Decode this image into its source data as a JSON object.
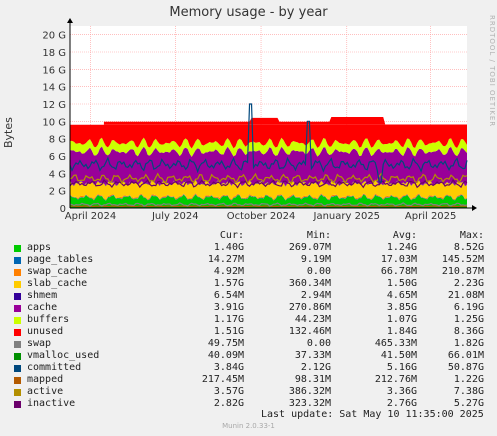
{
  "chart_data": {
    "type": "area",
    "title": "Memory usage - by year",
    "ylabel": "Bytes",
    "ylim": [
      0,
      21
    ],
    "y_ticks": [
      "0",
      "2 G",
      "4 G",
      "6 G",
      "8 G",
      "10 G",
      "12 G",
      "14 G",
      "16 G",
      "18 G",
      "20 G"
    ],
    "x_ticks": [
      {
        "label": "April 2024",
        "x": "2024-04-01"
      },
      {
        "label": "July 2024",
        "x": "2024-07-01"
      },
      {
        "label": "October 2024",
        "x": "2024-10-01"
      },
      {
        "label": "January 2025",
        "x": "2025-01-01"
      },
      {
        "label": "April 2025",
        "x": "2025-04-01"
      }
    ],
    "x_range": [
      "2024-03-10",
      "2025-05-10"
    ],
    "grid": true,
    "watermark": "RRDTOOL / TOBI OETIKER",
    "columns": [
      "Cur:",
      "Min:",
      "Avg:",
      "Max:"
    ],
    "series": [
      {
        "name": "apps",
        "color": "#00cc00",
        "cur": "1.40G",
        "min": "269.07M",
        "avg": "1.24G",
        "max": "8.52G"
      },
      {
        "name": "page_tables",
        "color": "#0066b3",
        "cur": "14.27M",
        "min": "9.19M",
        "avg": "17.03M",
        "max": "145.52M"
      },
      {
        "name": "swap_cache",
        "color": "#ff8000",
        "cur": "4.92M",
        "min": "0.00",
        "avg": "66.78M",
        "max": "210.87M"
      },
      {
        "name": "slab_cache",
        "color": "#ffcc00",
        "cur": "1.57G",
        "min": "360.34M",
        "avg": "1.50G",
        "max": "2.23G"
      },
      {
        "name": "shmem",
        "color": "#330099",
        "cur": "6.54M",
        "min": "2.94M",
        "avg": "4.65M",
        "max": "21.08M"
      },
      {
        "name": "cache",
        "color": "#990099",
        "cur": "3.91G",
        "min": "270.86M",
        "avg": "3.85G",
        "max": "6.19G"
      },
      {
        "name": "buffers",
        "color": "#ccff00",
        "cur": "1.17G",
        "min": "44.23M",
        "avg": "1.07G",
        "max": "1.25G"
      },
      {
        "name": "unused",
        "color": "#ff0000",
        "cur": "1.51G",
        "min": "132.46M",
        "avg": "1.84G",
        "max": "8.36G"
      },
      {
        "name": "swap",
        "color": "#808080",
        "cur": "49.75M",
        "min": "0.00",
        "avg": "465.33M",
        "max": "1.82G"
      },
      {
        "name": "vmalloc_used",
        "color": "#008f00",
        "cur": "40.09M",
        "min": "37.33M",
        "avg": "41.50M",
        "max": "66.01M"
      },
      {
        "name": "committed",
        "color": "#00487d",
        "cur": "3.84G",
        "min": "2.12G",
        "avg": "5.16G",
        "max": "50.87G"
      },
      {
        "name": "mapped",
        "color": "#b35a00",
        "cur": "217.45M",
        "min": "98.31M",
        "avg": "212.76M",
        "max": "1.22G"
      },
      {
        "name": "active",
        "color": "#b38f00",
        "cur": "3.57G",
        "min": "386.32M",
        "avg": "3.36G",
        "max": "7.38G"
      },
      {
        "name": "inactive",
        "color": "#6b006b",
        "cur": "2.82G",
        "min": "323.32M",
        "avg": "2.76G",
        "max": "5.27G"
      }
    ],
    "legend_placement": "bottom"
  },
  "footer": {
    "last_update": "Last update:  Sat May 10 11:35:00 2025",
    "generator": "Munin 2.0.33-1"
  }
}
